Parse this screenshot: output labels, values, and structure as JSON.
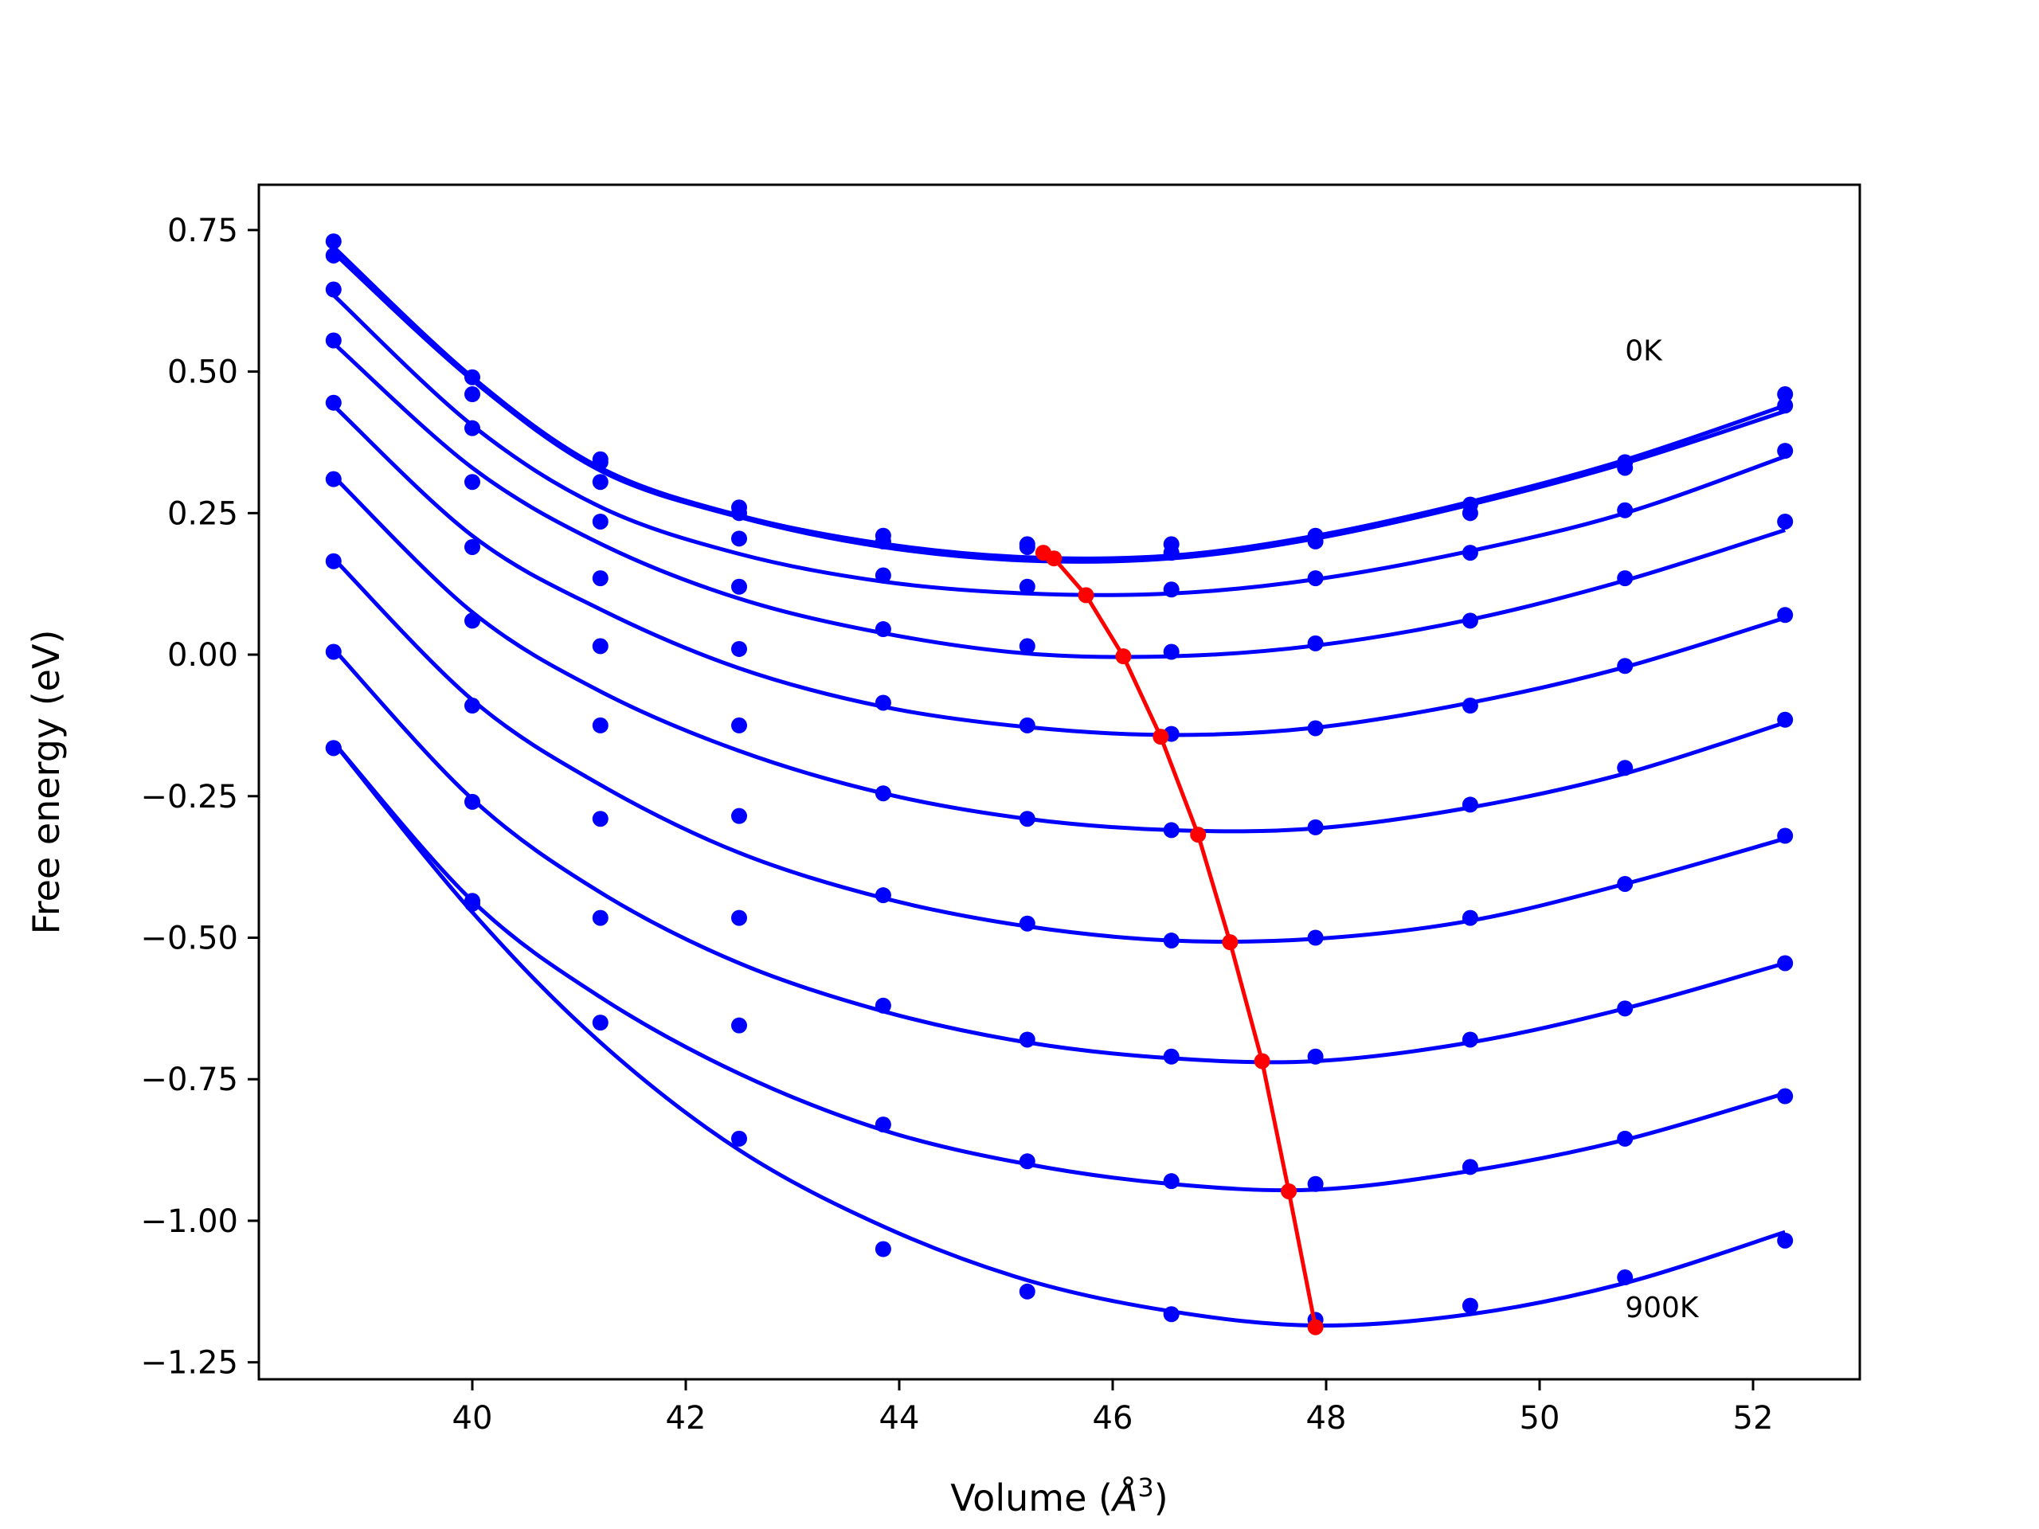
{
  "chart_data": {
    "type": "line",
    "title": "",
    "xlabel": "Volume (",
    "xlabel_symbol": "Å",
    "xlabel_exp": "3",
    "xlabel_close": ")",
    "ylabel": "Free energy (eV)",
    "xlim": [
      38.0,
      53.0
    ],
    "ylim": [
      -1.28,
      0.83
    ],
    "x_ticks": [
      40,
      42,
      44,
      46,
      48,
      50,
      52
    ],
    "y_ticks": [
      -1.25,
      -1.0,
      -0.75,
      -0.5,
      -0.25,
      0.0,
      0.25,
      0.5,
      0.75
    ],
    "x_tick_labels": [
      "40",
      "42",
      "44",
      "46",
      "48",
      "50",
      "52"
    ],
    "y_tick_labels": [
      "−1.25",
      "−1.00",
      "−0.75",
      "−0.50",
      "−0.25",
      "0.00",
      "0.25",
      "0.50",
      "0.75"
    ],
    "grid": false,
    "colors": {
      "curves": "#0000ff",
      "minimum_path": "#ff0000",
      "axes": "#000000"
    },
    "annotations": [
      {
        "text": "0K",
        "x": 50.8,
        "y": 0.52
      },
      {
        "text": "900K",
        "x": 50.8,
        "y": -1.17
      }
    ],
    "volumes": [
      38.7,
      40.0,
      41.2,
      42.5,
      43.85,
      45.2,
      46.55,
      47.9,
      49.35,
      50.8,
      52.3
    ],
    "series": [
      {
        "points": [
          0.73,
          0.49,
          0.34,
          0.26,
          0.21,
          0.195,
          0.195,
          0.21,
          0.265,
          0.34,
          0.46
        ],
        "fit": [
          0.72,
          0.49,
          0.33,
          0.246,
          0.196,
          0.172,
          0.175,
          0.21,
          0.27,
          0.344,
          0.44
        ]
      },
      {
        "points": [
          0.705,
          0.46,
          0.345,
          0.25,
          0.2,
          0.19,
          0.18,
          0.2,
          0.25,
          0.33,
          0.44
        ],
        "fit": [
          0.71,
          0.485,
          0.325,
          0.243,
          0.19,
          0.166,
          0.17,
          0.205,
          0.265,
          0.338,
          0.43
        ]
      },
      {
        "points": [
          0.645,
          0.4,
          0.305,
          0.205,
          0.14,
          0.12,
          0.115,
          0.135,
          0.18,
          0.255,
          0.36
        ],
        "fit": [
          0.635,
          0.405,
          0.261,
          0.178,
          0.129,
          0.108,
          0.108,
          0.133,
          0.183,
          0.25,
          0.35
        ]
      },
      {
        "points": [
          0.555,
          0.305,
          0.235,
          0.12,
          0.045,
          0.015,
          0.005,
          0.02,
          0.06,
          0.135,
          0.235
        ],
        "fit": [
          0.55,
          0.33,
          0.196,
          0.099,
          0.038,
          0.002,
          -0.003,
          0.016,
          0.062,
          0.131,
          0.22
        ]
      },
      {
        "points": [
          0.445,
          0.19,
          0.135,
          0.01,
          -0.085,
          -0.125,
          -0.14,
          -0.13,
          -0.09,
          -0.02,
          0.07
        ],
        "fit": [
          0.44,
          0.21,
          0.08,
          -0.024,
          -0.092,
          -0.128,
          -0.142,
          -0.129,
          -0.085,
          -0.022,
          0.065
        ]
      },
      {
        "points": [
          0.31,
          0.06,
          0.015,
          -0.125,
          -0.245,
          -0.29,
          -0.31,
          -0.305,
          -0.265,
          -0.2,
          -0.115
        ],
        "fit": [
          0.315,
          0.075,
          -0.065,
          -0.17,
          -0.245,
          -0.29,
          -0.31,
          -0.307,
          -0.27,
          -0.21,
          -0.12
        ]
      },
      {
        "points": [
          0.165,
          -0.09,
          -0.125,
          -0.285,
          -0.425,
          -0.475,
          -0.505,
          -0.5,
          -0.465,
          -0.405,
          -0.32
        ],
        "fit": [
          0.17,
          -0.08,
          -0.23,
          -0.35,
          -0.43,
          -0.48,
          -0.505,
          -0.502,
          -0.47,
          -0.405,
          -0.325
        ]
      },
      {
        "points": [
          0.005,
          -0.26,
          -0.29,
          -0.465,
          -0.62,
          -0.68,
          -0.71,
          -0.71,
          -0.68,
          -0.625,
          -0.545
        ],
        "fit": [
          0.01,
          -0.255,
          -0.42,
          -0.545,
          -0.63,
          -0.685,
          -0.713,
          -0.718,
          -0.685,
          -0.625,
          -0.545
        ]
      },
      {
        "points": [
          -0.165,
          -0.435,
          -0.465,
          -0.655,
          -0.83,
          -0.895,
          -0.93,
          -0.935,
          -0.905,
          -0.855,
          -0.78
        ],
        "fit": [
          -0.155,
          -0.435,
          -0.605,
          -0.74,
          -0.84,
          -0.9,
          -0.935,
          -0.945,
          -0.912,
          -0.857,
          -0.775
        ]
      },
      {
        "points": [
          -0.165,
          -0.44,
          -0.65,
          -0.855,
          -1.05,
          -1.125,
          -1.165,
          -1.175,
          -1.15,
          -1.1,
          -1.035
        ],
        "fit": [
          -0.155,
          -0.455,
          -0.685,
          -0.875,
          -1.01,
          -1.105,
          -1.16,
          -1.185,
          -1.165,
          -1.11,
          -1.02
        ]
      }
    ],
    "minimum_path": {
      "x": [
        45.35,
        45.45,
        45.75,
        46.1,
        46.45,
        46.8,
        47.1,
        47.4,
        47.65,
        47.9
      ],
      "y": [
        0.18,
        0.17,
        0.105,
        -0.003,
        -0.145,
        -0.318,
        -0.508,
        -0.718,
        -0.948,
        -1.188
      ]
    }
  }
}
